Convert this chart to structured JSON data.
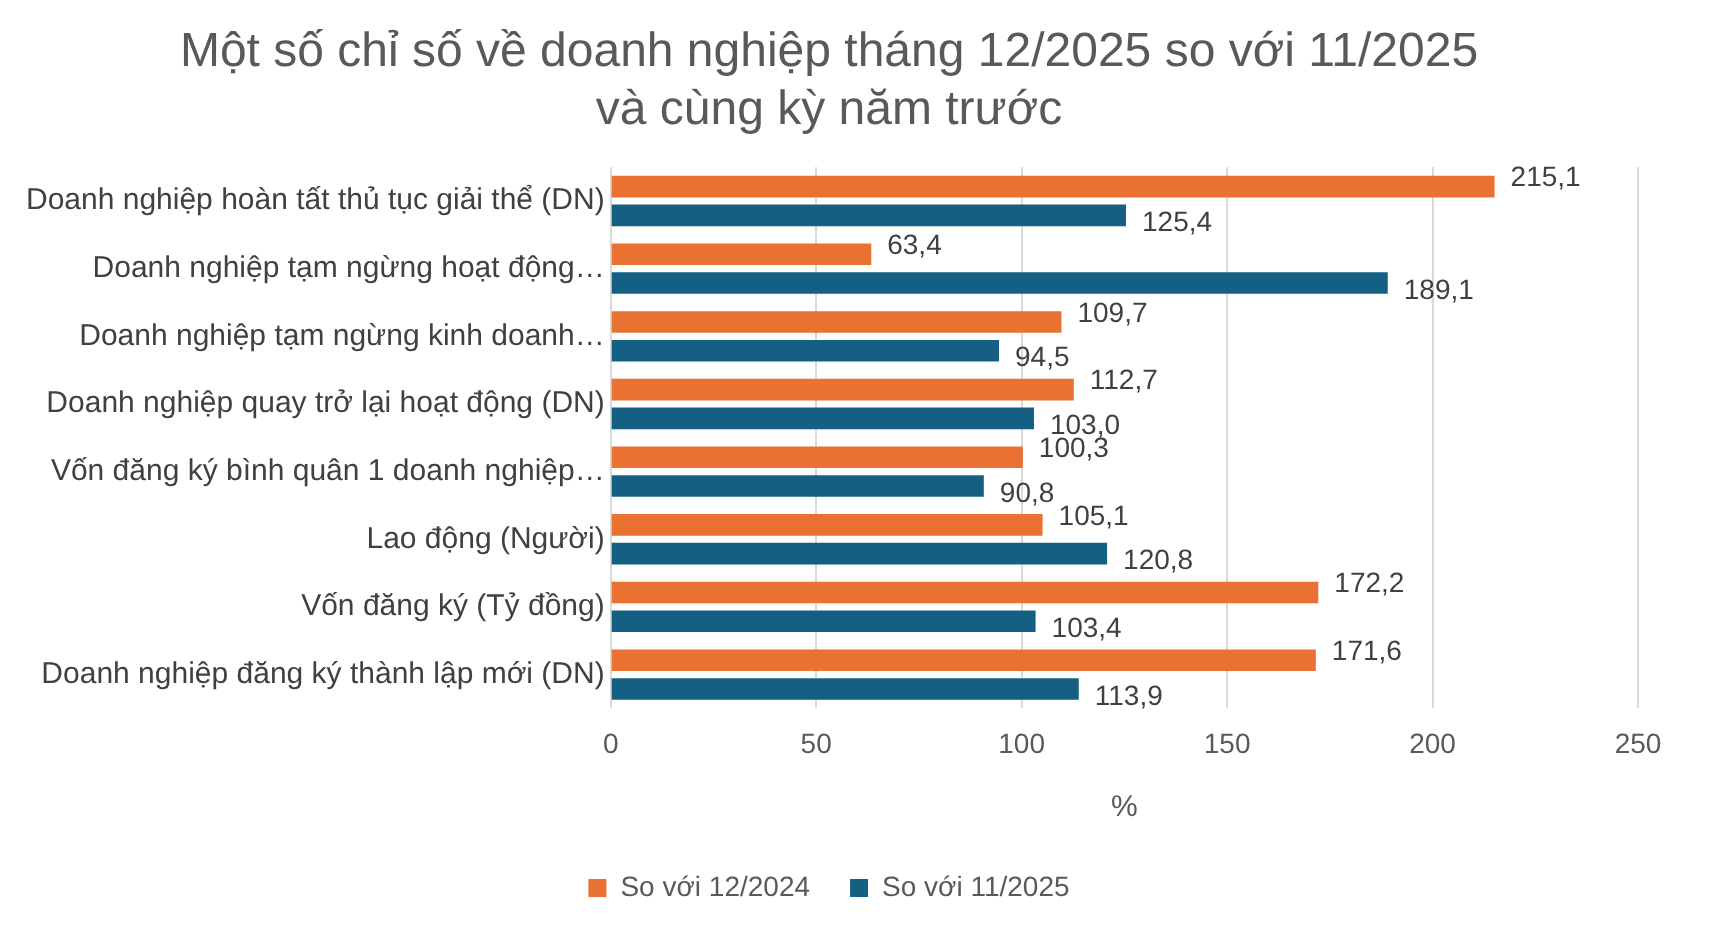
{
  "chart_data": {
    "type": "bar",
    "orientation": "horizontal",
    "title": "Một số chỉ số về doanh nghiệp tháng 12/2025 so với 11/2025 và cùng kỳ năm trước",
    "xlabel": "%",
    "categories": [
      "Doanh nghiệp hoàn tất thủ tục giải thể (DN)",
      "Doanh nghiệp tạm ngừng hoạt động…",
      "Doanh nghiệp tạm ngừng kinh doanh…",
      "Doanh nghiệp quay trở lại hoạt động (DN)",
      "Vốn đăng ký bình quân 1 doanh nghiệp…",
      "Lao động (Người)",
      "Vốn đăng ký (Tỷ đồng)",
      "Doanh nghiệp đăng ký thành lập mới (DN)"
    ],
    "series": [
      {
        "name": "So với 12/2024",
        "color": "#e97132",
        "values": [
          215.1,
          63.4,
          109.7,
          112.7,
          100.3,
          105.1,
          172.2,
          171.6
        ],
        "value_labels": [
          "215,1",
          "63,4",
          "109,7",
          "112,7",
          "100,3",
          "105,1",
          "172,2",
          "171,6"
        ]
      },
      {
        "name": "So với 11/2025",
        "color": "#156082",
        "values": [
          125.4,
          189.1,
          94.5,
          103.0,
          90.8,
          120.8,
          103.4,
          113.9
        ],
        "value_labels": [
          "125,4",
          "189,1",
          "94,5",
          "103,0",
          "90,8",
          "120,8",
          "103,4",
          "113,9"
        ]
      }
    ],
    "xlim": [
      0,
      250
    ],
    "xticks": [
      0,
      50,
      100,
      150,
      200,
      250
    ],
    "grid": "x",
    "legend": "bottom"
  }
}
